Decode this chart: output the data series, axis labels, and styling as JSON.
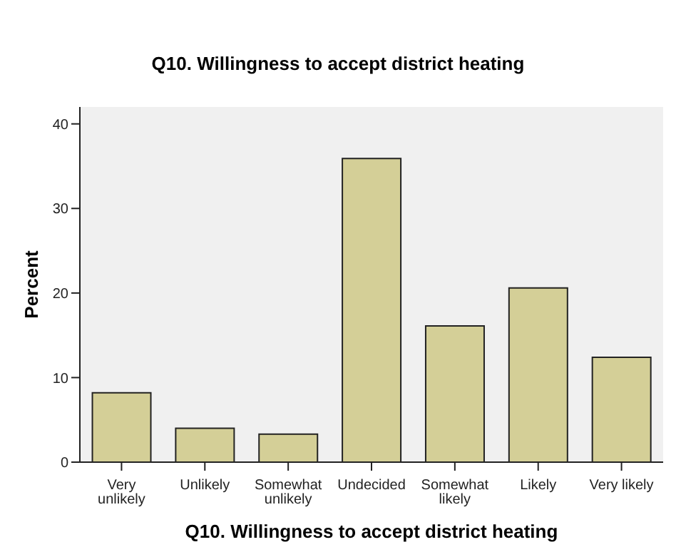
{
  "chart_data": {
    "type": "bar",
    "title": "Q10. Willingness to accept district heating",
    "xlabel": "Q10. Willingness to accept district heating",
    "ylabel": "Percent",
    "categories": [
      "Very unlikely",
      "Unlikely",
      "Somewhat unlikely",
      "Undecided",
      "Somewhat likely",
      "Likely",
      "Very likely"
    ],
    "values": [
      8.2,
      4.0,
      3.3,
      35.9,
      16.1,
      20.6,
      12.4
    ],
    "color": "#d4cf97",
    "ylim": [
      0,
      42
    ],
    "yticks": [
      0,
      10,
      20,
      30,
      40
    ],
    "grid": false,
    "legend": false
  }
}
